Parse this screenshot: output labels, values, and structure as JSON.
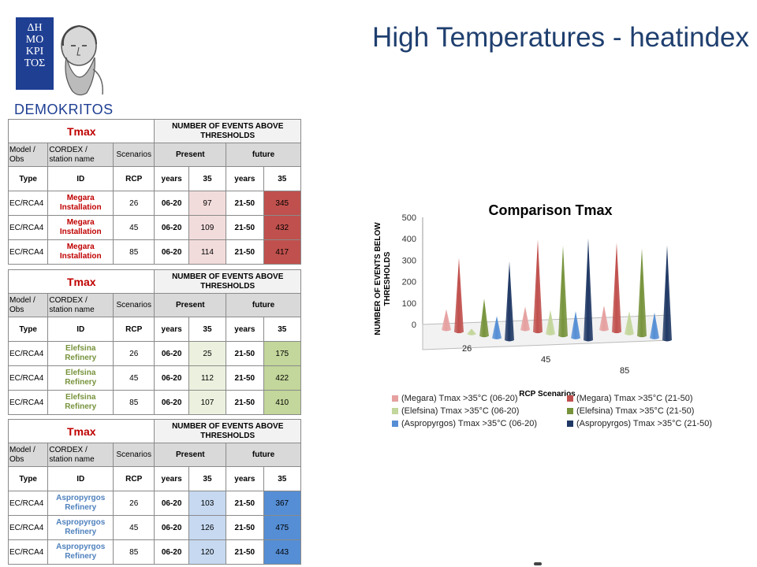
{
  "page": {
    "title": "High Temperatures - heatindex"
  },
  "logo": {
    "lines": [
      "ΔΗ",
      "ΜΟ",
      "ΚΡΙ",
      "ΤΟΣ"
    ],
    "text": "DEMOKRITOS"
  },
  "tables": [
    {
      "title": "Tmax",
      "events_header": "NUMBER OF EVENTS ABOVE THRESHOLDS",
      "header": {
        "model_obs": "Model / Obs",
        "cordex": "CORDEX / station name",
        "scenarios": "Scenarios",
        "present": "Present",
        "future": "future"
      },
      "subheader": {
        "type": "Type",
        "id": "ID",
        "rcp": "RCP",
        "years1": "years",
        "t1": "35",
        "years2": "years",
        "t2": "35"
      },
      "id_color": "#c00000",
      "present_color": "#f2dcdb",
      "future_color": "#c0504d",
      "rows": [
        {
          "type": "EC/RCA4",
          "id": "Megara Installation",
          "rcp": "26",
          "years_present": "06-20",
          "present": "97",
          "years_future": "21-50",
          "future": "345"
        },
        {
          "type": "EC/RCA4",
          "id": "Megara Installation",
          "rcp": "45",
          "years_present": "06-20",
          "present": "109",
          "years_future": "21-50",
          "future": "432"
        },
        {
          "type": "EC/RCA4",
          "id": "Megara Installation",
          "rcp": "85",
          "years_present": "06-20",
          "present": "114",
          "years_future": "21-50",
          "future": "417"
        }
      ]
    },
    {
      "title": "Tmax",
      "events_header": "NUMBER OF EVENTS ABOVE THRESHOLDS",
      "header": {
        "model_obs": "Model / Obs",
        "cordex": "CORDEX / station name",
        "scenarios": "Scenarios",
        "present": "Present",
        "future": "future"
      },
      "subheader": {
        "type": "Type",
        "id": "ID",
        "rcp": "RCP",
        "years1": "years",
        "t1": "35",
        "years2": "years",
        "t2": "35"
      },
      "id_color": "#77933c",
      "present_color": "#ebf1de",
      "future_color": "#c3d69b",
      "rows": [
        {
          "type": "EC/RCA4",
          "id": "Elefsina Refinery",
          "rcp": "26",
          "years_present": "06-20",
          "present": "25",
          "years_future": "21-50",
          "future": "175"
        },
        {
          "type": "EC/RCA4",
          "id": "Elefsina Refinery",
          "rcp": "45",
          "years_present": "06-20",
          "present": "112",
          "years_future": "21-50",
          "future": "422"
        },
        {
          "type": "EC/RCA4",
          "id": "Elefsina Refinery",
          "rcp": "85",
          "years_present": "06-20",
          "present": "107",
          "years_future": "21-50",
          "future": "410"
        }
      ]
    },
    {
      "title": "Tmax",
      "events_header": "NUMBER OF EVENTS ABOVE THRESHOLDS",
      "header": {
        "model_obs": "Model / Obs",
        "cordex": "CORDEX / station name",
        "scenarios": "Scenarios",
        "present": "Present",
        "future": "future"
      },
      "subheader": {
        "type": "Type",
        "id": "ID",
        "rcp": "RCP",
        "years1": "years",
        "t1": "35",
        "years2": "years",
        "t2": "35"
      },
      "id_color": "#4f81bd",
      "present_color": "#c6d9f1",
      "future_color": "#558ed5",
      "rows": [
        {
          "type": "EC/RCA4",
          "id": "Aspropyrgos Refinery",
          "rcp": "26",
          "years_present": "06-20",
          "present": "103",
          "years_future": "21-50",
          "future": "367"
        },
        {
          "type": "EC/RCA4",
          "id": "Aspropyrgos Refinery",
          "rcp": "45",
          "years_present": "06-20",
          "present": "126",
          "years_future": "21-50",
          "future": "475"
        },
        {
          "type": "EC/RCA4",
          "id": "Aspropyrgos Refinery",
          "rcp": "85",
          "years_present": "06-20",
          "present": "120",
          "years_future": "21-50",
          "future": "443"
        }
      ]
    }
  ],
  "chart_data": {
    "type": "bar",
    "style": "3d-cone",
    "title": "Comparison Tmax",
    "xlabel": "RCP Scenarios",
    "ylabel": "NUMBER OF EVENTS BELOW THRESHOLDS",
    "categories": [
      "26",
      "45",
      "85"
    ],
    "ylim": [
      0,
      500
    ],
    "yticks": [
      "0",
      "100",
      "200",
      "300",
      "400",
      "500"
    ],
    "series": [
      {
        "name": "(Megara) Tmax >35°C (06-20)",
        "values": [
          97,
          109,
          114
        ],
        "color": "#e6a0a0"
      },
      {
        "name": "(Megara)  Tmax >35°C (21-50)",
        "values": [
          345,
          432,
          417
        ],
        "color": "#c0504d"
      },
      {
        "name": "(Elefsina) Tmax >35°C (06-20)",
        "values": [
          25,
          112,
          107
        ],
        "color": "#c3d69b"
      },
      {
        "name": "(Elefsina) Tmax >35°C (21-50)",
        "values": [
          175,
          422,
          410
        ],
        "color": "#77933c"
      },
      {
        "name": "(Aspropyrgos) Tmax >35°C (06-20)",
        "values": [
          103,
          126,
          120
        ],
        "color": "#558ed5"
      },
      {
        "name": "(Aspropyrgos) Tmax >35°C (21-50)",
        "values": [
          367,
          475,
          443
        ],
        "color": "#1f3864"
      }
    ],
    "legend": "bottom"
  }
}
